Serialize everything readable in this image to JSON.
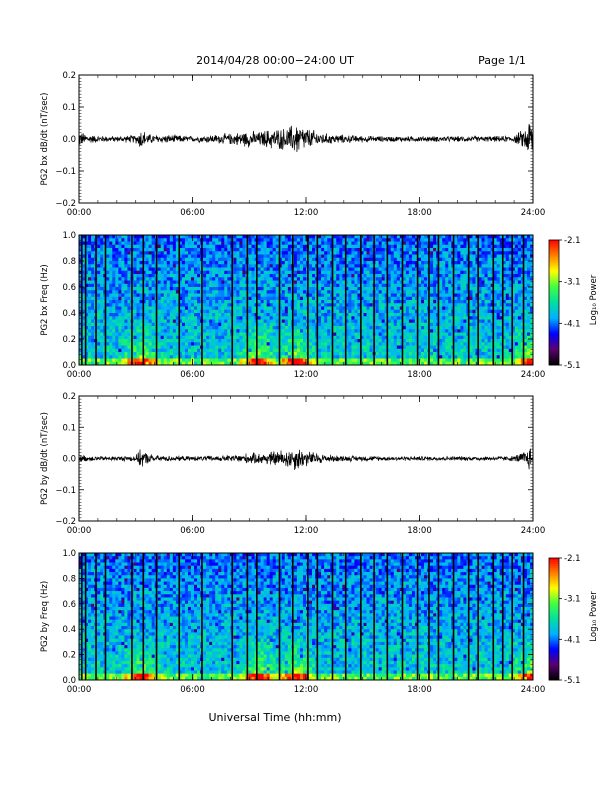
{
  "header": {
    "title": "2014/04/28  00:00−24:00 UT",
    "page": "Page 1/1"
  },
  "xaxis": {
    "label": "Universal Time (hh:mm)",
    "ticks": [
      "00:00",
      "06:00",
      "12:00",
      "18:00",
      "24:00"
    ]
  },
  "colors": {
    "trace": "#000000",
    "background": "#ffffff",
    "colormap": [
      "#000000",
      "#5a0070",
      "#0000ff",
      "#00b0ff",
      "#00e0a0",
      "#40ff40",
      "#ffff00",
      "#ff8000",
      "#ff0000"
    ]
  },
  "chart_data": [
    {
      "type": "line",
      "ylabel": "PG2 bx dB/dt (nT/sec)",
      "xlim": [
        0,
        24
      ],
      "ylim": [
        -0.2,
        0.2
      ],
      "yticks": [
        "0.2",
        "0.1",
        "0.0",
        "−0.1",
        "−0.2"
      ],
      "series": [
        {
          "x": [
            0,
            0.3,
            1,
            2,
            3,
            3.3,
            3.6,
            4,
            5,
            6,
            7,
            8,
            9,
            9.5,
            10,
            11,
            11.5,
            12,
            13,
            14,
            15,
            16,
            17,
            18,
            19,
            20,
            21,
            22,
            23,
            23.6,
            23.9,
            24
          ],
          "amplitude": [
            0.03,
            0.02,
            0.012,
            0.01,
            0.015,
            0.04,
            0.02,
            0.015,
            0.015,
            0.01,
            0.015,
            0.02,
            0.03,
            0.025,
            0.035,
            0.04,
            0.06,
            0.04,
            0.02,
            0.015,
            0.012,
            0.01,
            0.01,
            0.01,
            0.01,
            0.01,
            0.01,
            0.01,
            0.012,
            0.04,
            0.09,
            0.05
          ]
        }
      ]
    },
    {
      "type": "heatmap",
      "ylabel": "PG2 bx Freq (Hz)",
      "xlim": [
        0,
        24
      ],
      "ylim": [
        0,
        1.0
      ],
      "yticks": [
        "1.0",
        "0.8",
        "0.6",
        "0.4",
        "0.2",
        "0.0"
      ],
      "colorbar": {
        "label": "Log₁₀ Power",
        "range": [
          -5.1,
          -2.1
        ],
        "ticks": [
          "-2.1",
          "-3.1",
          "-4.1",
          "-5.1"
        ]
      },
      "data_gaps_hours": [
        0.15,
        0.35,
        0.9,
        1.4,
        2.8,
        3.4,
        4.1,
        5.3,
        6.5,
        8.1,
        8.9,
        9.4,
        10.6,
        11.3,
        12.1,
        12.6,
        13.4,
        14.1,
        14.9,
        15.6,
        16.3,
        17.1,
        17.9,
        18.5,
        19.0,
        19.8,
        20.6,
        21.1,
        21.9,
        22.4,
        22.9,
        23.5
      ],
      "low_freq_enhancement_hours": [
        3.3,
        9.5,
        11.5,
        23.9
      ]
    },
    {
      "type": "line",
      "ylabel": "PG2 by dB/dt (nT/sec)",
      "xlim": [
        0,
        24
      ],
      "ylim": [
        -0.2,
        0.2
      ],
      "yticks": [
        "0.2",
        "0.1",
        "0.0",
        "−0.1",
        "−0.2"
      ],
      "series": [
        {
          "x": [
            0,
            0.3,
            1,
            2,
            3,
            3.3,
            3.6,
            4,
            5,
            6,
            7,
            8,
            9,
            9.5,
            10,
            11,
            11.5,
            12,
            13,
            14,
            15,
            16,
            17,
            18,
            19,
            20,
            21,
            22,
            23,
            23.6,
            23.9,
            24
          ],
          "amplitude": [
            0.015,
            0.012,
            0.008,
            0.008,
            0.012,
            0.035,
            0.02,
            0.012,
            0.01,
            0.008,
            0.01,
            0.012,
            0.02,
            0.02,
            0.025,
            0.035,
            0.045,
            0.03,
            0.015,
            0.01,
            0.01,
            0.008,
            0.008,
            0.008,
            0.008,
            0.008,
            0.008,
            0.008,
            0.01,
            0.03,
            0.05,
            0.03
          ]
        }
      ]
    },
    {
      "type": "heatmap",
      "ylabel": "PG2 by Freq (Hz)",
      "xlim": [
        0,
        24
      ],
      "ylim": [
        0,
        1.0
      ],
      "yticks": [
        "1.0",
        "0.8",
        "0.6",
        "0.4",
        "0.2",
        "0.0"
      ],
      "colorbar": {
        "label": "Log₁₀ Power",
        "range": [
          -5.1,
          -2.1
        ],
        "ticks": [
          "-2.1",
          "-3.1",
          "-4.1",
          "-5.1"
        ]
      },
      "data_gaps_hours": [
        0.15,
        0.35,
        0.9,
        1.4,
        2.8,
        3.4,
        4.1,
        5.3,
        6.5,
        8.1,
        8.9,
        9.4,
        10.6,
        11.3,
        12.1,
        12.6,
        13.4,
        14.1,
        14.9,
        15.6,
        16.3,
        17.1,
        17.9,
        18.5,
        19.0,
        19.8,
        20.6,
        21.1,
        21.9,
        22.4,
        22.9,
        23.5
      ],
      "low_freq_enhancement_hours": [
        3.3,
        9.5,
        11.5,
        23.9
      ]
    }
  ]
}
